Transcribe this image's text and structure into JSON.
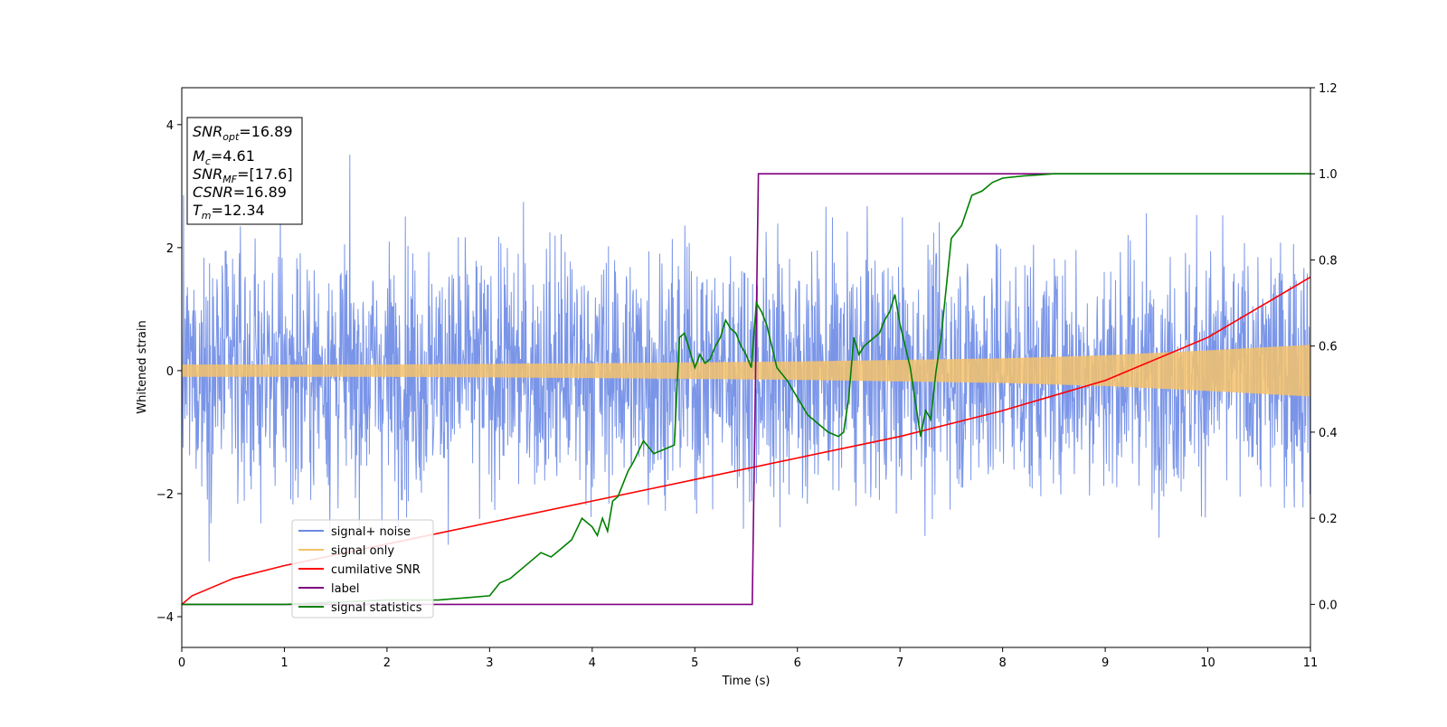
{
  "chart_data": {
    "type": "line",
    "xlabel": "Time (s)",
    "ylabel": "Whitened strain",
    "xlim": [
      0,
      11
    ],
    "ylim_left": [
      -4.5,
      4.6
    ],
    "ylim_right": [
      -0.1,
      1.2
    ],
    "x_ticks": [
      "0",
      "1",
      "2",
      "3",
      "4",
      "5",
      "6",
      "7",
      "8",
      "9",
      "10",
      "11"
    ],
    "y_ticks_left": [
      "−4",
      "−2",
      "0",
      "2",
      "4"
    ],
    "y_ticks_right": [
      "0.0",
      "0.2",
      "0.4",
      "0.6",
      "0.8",
      "1.0",
      "1.2"
    ],
    "grid": false,
    "legend_position": "lower-left",
    "info_box": {
      "snr_opt": {
        "base": "SNR",
        "sub": "opt",
        "value": "=16.89"
      },
      "mc": {
        "base": "M",
        "sub": "c",
        "value": "=4.61"
      },
      "snr_mf": {
        "base": "SNR",
        "sub": "MF",
        "value": "=[17.6]"
      },
      "csnr": {
        "base": "CSNR",
        "value": "=16.89"
      },
      "tm": {
        "base": "T",
        "sub": "m",
        "value": "=12.34"
      }
    },
    "series": [
      {
        "name": "signal+ noise",
        "axis": "left",
        "color": "#6b8ae6",
        "kind": "noise",
        "amplitude_std": 1.0,
        "peak_range": [
          -4.1,
          4.2
        ]
      },
      {
        "name": "signal only",
        "axis": "left",
        "color": "#f5c26b",
        "kind": "chirp",
        "envelope": {
          "x": [
            0,
            2,
            4,
            6,
            8,
            9,
            10,
            11
          ],
          "y": [
            0.1,
            0.1,
            0.12,
            0.15,
            0.2,
            0.25,
            0.33,
            0.42
          ]
        }
      },
      {
        "name": "cumilative SNR",
        "axis": "right",
        "color": "#ff0000",
        "x": [
          0,
          0.1,
          0.5,
          1,
          2,
          3,
          4,
          5,
          6,
          7,
          8,
          9,
          10,
          11
        ],
        "y": [
          0.0,
          0.02,
          0.06,
          0.09,
          0.14,
          0.19,
          0.24,
          0.29,
          0.34,
          0.39,
          0.45,
          0.52,
          0.62,
          0.76
        ]
      },
      {
        "name": "label",
        "axis": "right",
        "color": "#800080",
        "x": [
          0,
          5.56,
          5.62,
          11
        ],
        "y": [
          0.0,
          0.0,
          1.0,
          1.0
        ]
      },
      {
        "name": "signal statistics",
        "axis": "right",
        "color": "#008000",
        "x": [
          0,
          1,
          2,
          2.5,
          3,
          3.1,
          3.2,
          3.3,
          3.4,
          3.5,
          3.6,
          3.7,
          3.8,
          3.9,
          4.0,
          4.05,
          4.1,
          4.15,
          4.2,
          4.25,
          4.3,
          4.35,
          4.4,
          4.5,
          4.6,
          4.7,
          4.8,
          4.85,
          4.9,
          4.95,
          5.0,
          5.05,
          5.1,
          5.15,
          5.2,
          5.25,
          5.3,
          5.35,
          5.4,
          5.45,
          5.5,
          5.55,
          5.6,
          5.65,
          5.7,
          5.75,
          5.8,
          5.9,
          6.0,
          6.1,
          6.2,
          6.3,
          6.4,
          6.45,
          6.5,
          6.55,
          6.6,
          6.65,
          6.7,
          6.8,
          6.85,
          6.9,
          6.95,
          7.0,
          7.1,
          7.2,
          7.25,
          7.3,
          7.35,
          7.4,
          7.5,
          7.6,
          7.7,
          7.8,
          7.9,
          8.0,
          8.2,
          8.5,
          9.0,
          10.0,
          11.0
        ],
        "y": [
          0.0,
          0.0,
          0.01,
          0.01,
          0.02,
          0.05,
          0.06,
          0.08,
          0.1,
          0.12,
          0.11,
          0.13,
          0.15,
          0.2,
          0.18,
          0.16,
          0.2,
          0.17,
          0.24,
          0.25,
          0.28,
          0.31,
          0.33,
          0.38,
          0.35,
          0.36,
          0.37,
          0.62,
          0.63,
          0.59,
          0.55,
          0.58,
          0.56,
          0.57,
          0.6,
          0.62,
          0.66,
          0.64,
          0.63,
          0.6,
          0.58,
          0.55,
          0.7,
          0.68,
          0.65,
          0.6,
          0.55,
          0.52,
          0.48,
          0.44,
          0.42,
          0.4,
          0.39,
          0.4,
          0.48,
          0.62,
          0.58,
          0.6,
          0.61,
          0.63,
          0.66,
          0.68,
          0.72,
          0.65,
          0.55,
          0.39,
          0.45,
          0.43,
          0.54,
          0.62,
          0.85,
          0.88,
          0.95,
          0.96,
          0.98,
          0.99,
          0.995,
          1.0,
          1.0,
          1.0,
          1.0
        ]
      }
    ]
  }
}
